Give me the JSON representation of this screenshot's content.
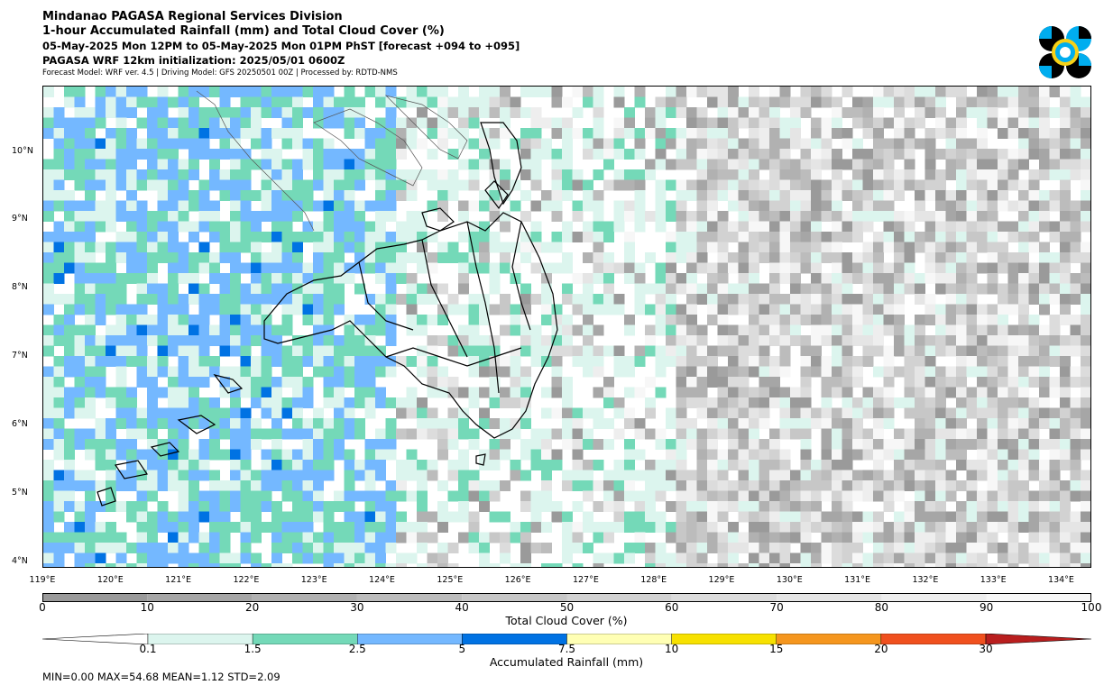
{
  "header": {
    "title": "Mindanao PAGASA Regional Services Division",
    "subtitle": "1-hour Accumulated Rainfall (mm) and Total Cloud Cover (%)",
    "period": "05-May-2025 Mon 12PM to 05-May-2025 Mon 01PM PhST [forecast +094 to +095]",
    "init": "PAGASA WRF 12km initialization: 2025/05/01 0600Z",
    "info": "Forecast Model: WRF ver. 4.5 | Driving Model: GFS 20250501 00Z | Processed by: RDTD-NMS"
  },
  "logo": {
    "icon": "pagasa-logo-icon",
    "colors": [
      "#00adef",
      "#000000",
      "#f7d117"
    ]
  },
  "map": {
    "lat_labels": [
      "10°N",
      "9°N",
      "8°N",
      "7°N",
      "6°N",
      "5°N",
      "4°N"
    ],
    "lon_labels": [
      "119°E",
      "120°E",
      "121°E",
      "122°E",
      "123°E",
      "124°E",
      "125°E",
      "126°E",
      "127°E",
      "128°E",
      "129°E",
      "130°E",
      "131°E",
      "132°E",
      "133°E",
      "134°E"
    ]
  },
  "cloud_bar": {
    "ticks": [
      "0",
      "10",
      "20",
      "30",
      "40",
      "50",
      "60",
      "70",
      "80",
      "90",
      "100"
    ],
    "label": "Total Cloud Cover (%)",
    "colors": [
      "#9a9a9a",
      "#a6a6a6",
      "#b1b1b1",
      "#bcbcbc",
      "#c7c7c7",
      "#d2d2d2",
      "#dcdcdc",
      "#e5e5e5",
      "#eeeeee",
      "#f7f7f7"
    ]
  },
  "rain_bar": {
    "ticks": [
      "0.1",
      "1.5",
      "2.5",
      "5",
      "7.5",
      "10",
      "15",
      "20",
      "30"
    ],
    "label": "Accumulated Rainfall (mm)",
    "colors": [
      "#ffffff",
      "#dcf5ee",
      "#74d9b8",
      "#74b8ff",
      "#0072e3",
      "#ffffb4",
      "#f7e100",
      "#f5961e",
      "#f0501e",
      "#b91e1e"
    ]
  },
  "stats": "MIN=0.00   MAX=54.68   MEAN=1.12   STD=2.09"
}
